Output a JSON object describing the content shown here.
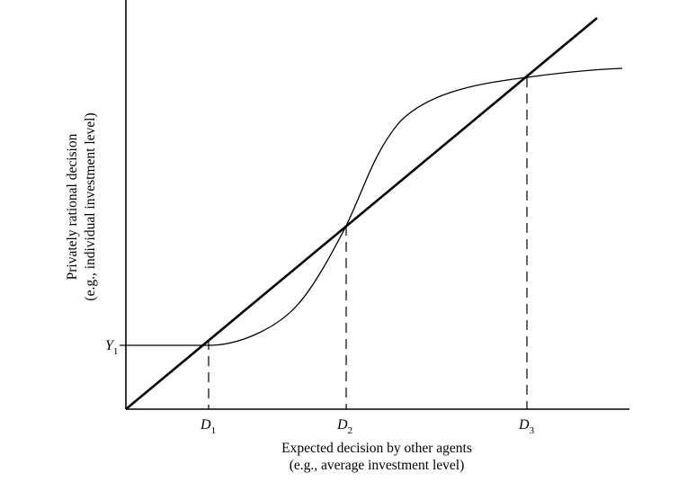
{
  "diagram": {
    "y_axis_title_line1": "Privately rational decision",
    "y_axis_title_line2": "(e.g., individual investment level)",
    "x_axis_title_line1": "Expected decision by other agents",
    "x_axis_title_line2": "(e.g., average investment level)",
    "y_tick": {
      "base": "Y",
      "sub": "1"
    },
    "x_ticks": [
      {
        "base": "D",
        "sub": "1"
      },
      {
        "base": "D",
        "sub": "2"
      },
      {
        "base": "D",
        "sub": "3"
      }
    ],
    "curves": [
      "45-degree line",
      "S-shaped reaction curve"
    ]
  }
}
